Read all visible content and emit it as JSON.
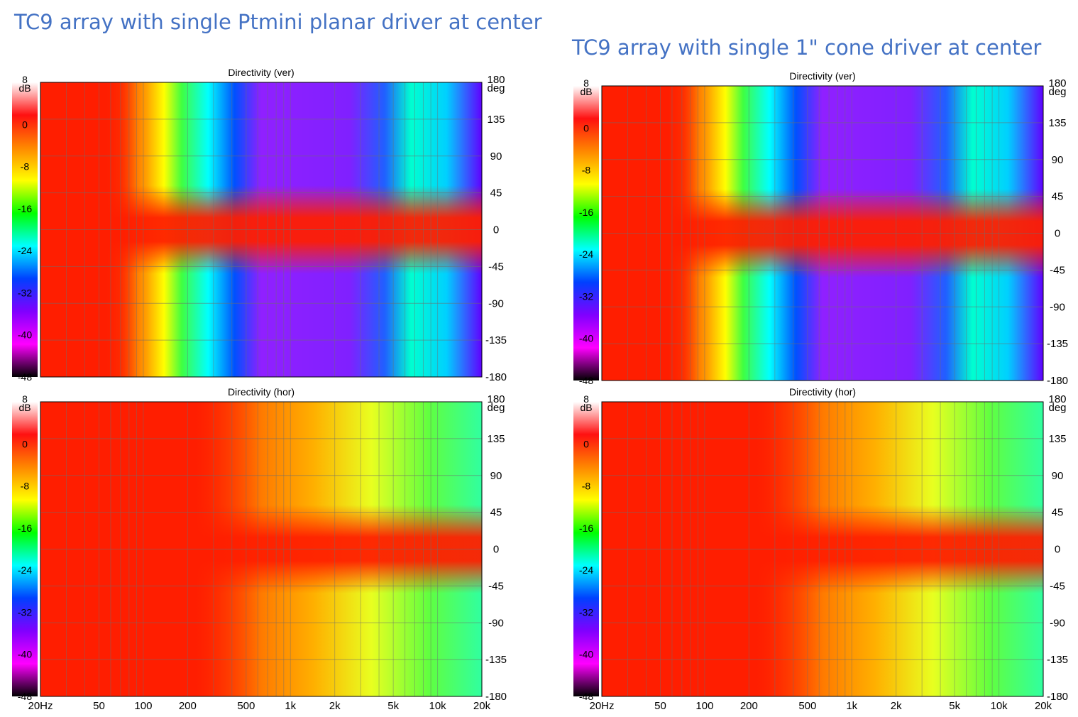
{
  "headings": {
    "left": "TC9 array with single Ptmini planar driver at center",
    "right": "TC9 array with single 1\" cone driver at center"
  },
  "axes": {
    "x_ticks": [
      "20Hz",
      "50",
      "100",
      "200",
      "500",
      "1k",
      "2k",
      "5k",
      "10k",
      "20k"
    ],
    "x_tick_values": [
      20,
      50,
      100,
      200,
      500,
      1000,
      2000,
      5000,
      10000,
      20000
    ],
    "angle_ticks": [
      "180",
      "135",
      "90",
      "45",
      "0",
      "-45",
      "-90",
      "-135",
      "-180"
    ],
    "angle_values": [
      180,
      135,
      90,
      45,
      0,
      -45,
      -90,
      -135,
      -180
    ],
    "angle_unit": "deg",
    "db_ticks": [
      "8",
      "0",
      "-8",
      "-16",
      "-24",
      "-32",
      "-40",
      "-48"
    ],
    "db_values": [
      8,
      0,
      -8,
      -16,
      -24,
      -32,
      -40,
      -48
    ],
    "db_unit": "dB",
    "colorscale": [
      "#ffffff",
      "#ff1010",
      "#ff8800",
      "#ffff00",
      "#00ff00",
      "#00ffff",
      "#0040ff",
      "#8000ff",
      "#ff00ff",
      "#000000"
    ]
  },
  "chart_data": [
    {
      "type": "heatmap",
      "title": "Directivity (ver)",
      "group": "left",
      "xlabel": "",
      "ylabel": "",
      "x_scale": "log",
      "xlim": [
        20,
        20000
      ],
      "ylim": [
        -180,
        180
      ],
      "zlim": [
        -48,
        8
      ],
      "x_ticks_visible": false
    },
    {
      "type": "heatmap",
      "title": "Directivity (hor)",
      "group": "left",
      "xlabel": "",
      "ylabel": "",
      "x_scale": "log",
      "xlim": [
        20,
        20000
      ],
      "ylim": [
        -180,
        180
      ],
      "zlim": [
        -48,
        8
      ],
      "x_ticks_visible": true
    },
    {
      "type": "heatmap",
      "title": "Directivity (ver)",
      "group": "right",
      "xlabel": "",
      "ylabel": "",
      "x_scale": "log",
      "xlim": [
        20,
        20000
      ],
      "ylim": [
        -180,
        180
      ],
      "zlim": [
        -48,
        8
      ],
      "x_ticks_visible": false
    },
    {
      "type": "heatmap",
      "title": "Directivity (hor)",
      "group": "right",
      "xlabel": "",
      "ylabel": "",
      "x_scale": "log",
      "xlim": [
        20,
        20000
      ],
      "ylim": [
        -180,
        180
      ],
      "zlim": [
        -48,
        8
      ],
      "x_ticks_visible": true
    }
  ]
}
